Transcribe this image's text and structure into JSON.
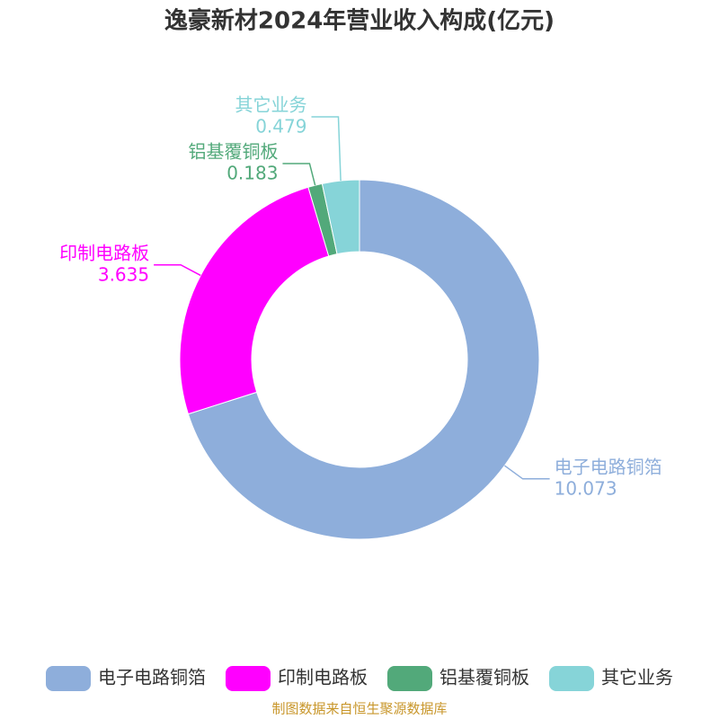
{
  "chart_data": {
    "type": "pie",
    "title": "逸豪新材2024年营业收入构成(亿元)",
    "categories": [
      "电子电路铜箔",
      "印制电路板",
      "铝基覆铜板",
      "其它业务"
    ],
    "values": [
      10.073,
      3.635,
      0.183,
      0.479
    ],
    "colors": [
      "#8eaedb",
      "#ff00ff",
      "#52a97a",
      "#86d4d8"
    ],
    "legend": "bottom",
    "source": "制图数据来自恒生聚源数据库"
  }
}
